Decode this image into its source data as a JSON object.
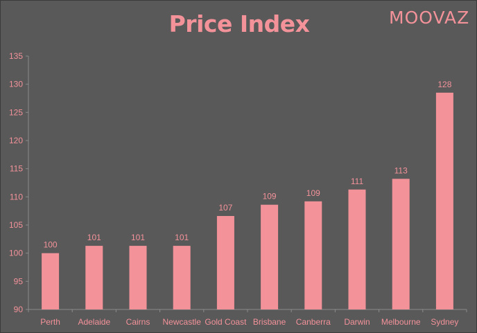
{
  "colors": {
    "accent": "#f4929a",
    "background": "#595959",
    "axis": "#8c8c8c"
  },
  "logo": {
    "text": "MOOVAZ"
  },
  "chart_data": {
    "type": "bar",
    "title": "Price Index",
    "xlabel": "",
    "ylabel": "",
    "categories": [
      "Perth",
      "Adelaide",
      "Cairns",
      "Newcastle",
      "Gold Coast",
      "Brisbane",
      "Canberra",
      "Darwin",
      "Melbourne",
      "Sydney"
    ],
    "values": [
      100,
      101.3,
      101.3,
      101.3,
      106.6,
      108.6,
      109.2,
      111.3,
      113.2,
      128.5
    ],
    "value_labels": [
      "100",
      "101",
      "101",
      "101",
      "107",
      "109",
      "109",
      "111",
      "113",
      "128"
    ],
    "ylim": [
      90,
      135
    ],
    "yticks": [
      90,
      95,
      100,
      105,
      110,
      115,
      120,
      125,
      130,
      135
    ],
    "grid": false,
    "legend": "none"
  }
}
